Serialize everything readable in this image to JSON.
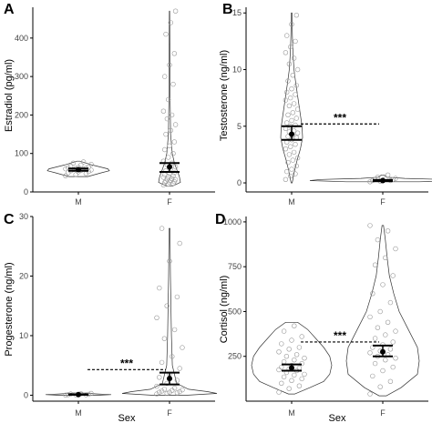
{
  "figure": {
    "x_label": "Sex"
  },
  "chart_data": [
    {
      "panel": "A",
      "type": "violin",
      "ylabel": "Estradiol (pg/ml)",
      "categories": [
        "M",
        "F"
      ],
      "ylim": [
        0,
        480
      ],
      "yticks": [
        0,
        100,
        200,
        300,
        400
      ],
      "violins": [
        {
          "category": "M",
          "shape": [
            [
              40,
              0.3
            ],
            [
              50,
              0.75
            ],
            [
              55,
              1
            ],
            [
              60,
              0.95
            ],
            [
              65,
              0.7
            ],
            [
              70,
              0.45
            ],
            [
              75,
              0.25
            ],
            [
              80,
              0.05
            ]
          ]
        },
        {
          "category": "F",
          "shape": [
            [
              15,
              0.25
            ],
            [
              25,
              1
            ],
            [
              40,
              0.9
            ],
            [
              55,
              0.7
            ],
            [
              75,
              0.45
            ],
            [
              100,
              0.25
            ],
            [
              150,
              0.1
            ],
            [
              250,
              0.05
            ],
            [
              470,
              0.02
            ]
          ]
        }
      ],
      "points": [
        {
          "category": "M",
          "values": [
            42,
            45,
            48,
            50,
            52,
            53,
            55,
            56,
            57,
            58,
            59,
            60,
            61,
            62,
            63,
            64,
            65,
            67,
            70,
            72,
            75,
            78
          ]
        },
        {
          "category": "F",
          "values": [
            18,
            20,
            22,
            24,
            25,
            27,
            28,
            30,
            32,
            34,
            35,
            38,
            40,
            42,
            45,
            48,
            50,
            55,
            60,
            65,
            70,
            75,
            80,
            90,
            100,
            110,
            120,
            130,
            150,
            160,
            175,
            190,
            200,
            210,
            240,
            280,
            300,
            330,
            360,
            410,
            440,
            470
          ]
        }
      ],
      "summary": [
        {
          "category": "M",
          "mean": 58,
          "ci": [
            55,
            61
          ]
        },
        {
          "category": "F",
          "mean": 65,
          "ci": [
            52,
            75
          ]
        }
      ]
    },
    {
      "panel": "B",
      "type": "violin",
      "ylabel": "Testosterone (ng/ml)",
      "categories": [
        "M",
        "F"
      ],
      "ylim": [
        -0.8,
        15.5
      ],
      "yticks": [
        0,
        5,
        10,
        15
      ],
      "violins": [
        {
          "category": "M",
          "shape": [
            [
              0,
              0.05
            ],
            [
              1,
              0.25
            ],
            [
              2,
              0.5
            ],
            [
              3,
              0.8
            ],
            [
              4,
              1
            ],
            [
              5,
              0.95
            ],
            [
              6,
              0.8
            ],
            [
              7,
              0.65
            ],
            [
              8,
              0.5
            ],
            [
              9,
              0.35
            ],
            [
              10,
              0.22
            ],
            [
              11,
              0.15
            ],
            [
              12,
              0.1
            ],
            [
              13,
              0.07
            ],
            [
              14,
              0.05
            ],
            [
              15,
              0.03
            ]
          ]
        },
        {
          "category": "F",
          "shape": [
            [
              0.1,
              0.5
            ],
            [
              0.2,
              1
            ],
            [
              0.3,
              0.85
            ],
            [
              0.4,
              0.3
            ],
            [
              0.5,
              0.06
            ],
            [
              0.7,
              0.02
            ]
          ]
        }
      ],
      "points": [
        {
          "category": "M",
          "values": [
            0.3,
            0.6,
            0.8,
            1.0,
            1.2,
            1.5,
            1.8,
            2.0,
            2.2,
            2.5,
            2.7,
            3.0,
            3.2,
            3.4,
            3.6,
            3.8,
            4.0,
            4.1,
            4.2,
            4.4,
            4.5,
            4.6,
            4.8,
            5.0,
            5.1,
            5.3,
            5.5,
            5.7,
            6.0,
            6.2,
            6.5,
            6.8,
            7.0,
            7.3,
            7.5,
            7.8,
            8.0,
            8.3,
            8.6,
            9.0,
            9.5,
            10.0,
            10.5,
            11.0,
            11.5,
            12.0,
            12.5,
            13.0,
            14.0,
            14.8
          ]
        },
        {
          "category": "F",
          "values": [
            0.1,
            0.15,
            0.2,
            0.2,
            0.25,
            0.3,
            0.3,
            0.35,
            0.4,
            0.5,
            0.7
          ]
        }
      ],
      "summary": [
        {
          "category": "M",
          "mean": 4.3,
          "ci": [
            3.8,
            5.0
          ]
        },
        {
          "category": "F",
          "mean": 0.2,
          "ci": [
            0.15,
            0.25
          ]
        }
      ],
      "significance": {
        "label": "***",
        "y": 5.2,
        "from": "M",
        "to": "F"
      }
    },
    {
      "panel": "C",
      "type": "violin",
      "ylabel": "Progesterone (ng/ml)",
      "categories": [
        "M",
        "F"
      ],
      "ylim": [
        -1,
        30
      ],
      "yticks": [
        0,
        10,
        20,
        30
      ],
      "violins": [
        {
          "category": "M",
          "shape": [
            [
              0,
              0.6
            ],
            [
              0.1,
              1
            ],
            [
              0.2,
              0.6
            ],
            [
              0.4,
              0.05
            ]
          ]
        },
        {
          "category": "F",
          "shape": [
            [
              0,
              0.35
            ],
            [
              0.3,
              1
            ],
            [
              0.6,
              0.8
            ],
            [
              1.0,
              0.4
            ],
            [
              2,
              0.15
            ],
            [
              5,
              0.06
            ],
            [
              10,
              0.04
            ],
            [
              20,
              0.02
            ],
            [
              28,
              0.01
            ]
          ]
        }
      ],
      "points": [
        {
          "category": "M",
          "values": [
            0.02,
            0.05,
            0.08,
            0.1,
            0.12,
            0.15,
            0.2,
            0.25,
            0.3
          ]
        },
        {
          "category": "F",
          "values": [
            0.2,
            0.3,
            0.4,
            0.5,
            0.5,
            0.6,
            0.7,
            0.8,
            0.9,
            1.0,
            1.2,
            1.5,
            2.0,
            2.5,
            3.0,
            3.5,
            4.5,
            5.5,
            6.5,
            8.0,
            9.5,
            11.0,
            13.0,
            15.0,
            16.5,
            18.0,
            22.5,
            25.5,
            28.0
          ]
        }
      ],
      "summary": [
        {
          "category": "M",
          "mean": 0.1,
          "ci": [
            0.08,
            0.12
          ]
        },
        {
          "category": "F",
          "mean": 2.8,
          "ci": [
            1.8,
            3.8
          ]
        }
      ],
      "significance": {
        "label": "***",
        "y": 4.3,
        "from": "M",
        "to": "F"
      }
    },
    {
      "panel": "D",
      "type": "violin",
      "ylabel": "Cortisol (ng/ml)",
      "categories": [
        "M",
        "F"
      ],
      "ylim": [
        0,
        1030
      ],
      "yticks": [
        250,
        500,
        750,
        1000
      ],
      "violins": [
        {
          "category": "M",
          "shape": [
            [
              40,
              0.08
            ],
            [
              75,
              0.45
            ],
            [
              110,
              0.8
            ],
            [
              150,
              0.95
            ],
            [
              200,
              1
            ],
            [
              250,
              0.95
            ],
            [
              300,
              0.8
            ],
            [
              350,
              0.6
            ],
            [
              400,
              0.4
            ],
            [
              440,
              0.15
            ]
          ]
        },
        {
          "category": "F",
          "shape": [
            [
              30,
              0.1
            ],
            [
              75,
              0.5
            ],
            [
              150,
              0.95
            ],
            [
              225,
              1
            ],
            [
              300,
              0.95
            ],
            [
              400,
              0.7
            ],
            [
              500,
              0.45
            ],
            [
              600,
              0.3
            ],
            [
              700,
              0.18
            ],
            [
              800,
              0.12
            ],
            [
              900,
              0.07
            ],
            [
              980,
              0.02
            ]
          ]
        }
      ],
      "points": [
        {
          "category": "M",
          "values": [
            50,
            70,
            85,
            100,
            115,
            125,
            135,
            145,
            150,
            160,
            170,
            175,
            180,
            185,
            190,
            200,
            210,
            220,
            230,
            240,
            250,
            260,
            275,
            290,
            300,
            320,
            340,
            360,
            390,
            420
          ]
        },
        {
          "category": "F",
          "values": [
            40,
            80,
            110,
            140,
            170,
            190,
            210,
            230,
            240,
            250,
            260,
            270,
            280,
            290,
            300,
            315,
            330,
            350,
            370,
            390,
            410,
            440,
            470,
            500,
            550,
            600,
            650,
            700,
            760,
            800,
            850,
            900,
            950,
            980
          ]
        }
      ],
      "summary": [
        {
          "category": "M",
          "mean": 185,
          "ci": [
            170,
            205
          ]
        },
        {
          "category": "F",
          "mean": 275,
          "ci": [
            250,
            310
          ]
        }
      ],
      "significance": {
        "label": "***",
        "y": 330,
        "from": "M",
        "to": "F"
      }
    }
  ]
}
